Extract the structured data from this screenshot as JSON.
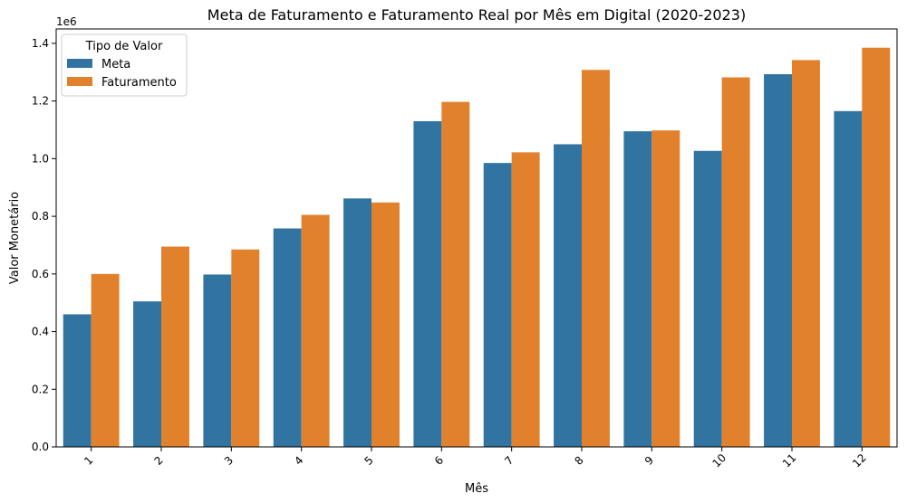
{
  "chart_data": {
    "type": "bar",
    "title": "Meta de Faturamento e Faturamento Real por Mês em Digital (2020-2023)",
    "xlabel": "Mês",
    "ylabel": "Valor Monetário",
    "y_offset_label": "1e6",
    "ylim": [
      0,
      1.45
    ],
    "y_ticks": [
      "0.0",
      "0.2",
      "0.4",
      "0.6",
      "0.8",
      "1.0",
      "1.2",
      "1.4"
    ],
    "categories": [
      "1",
      "2",
      "3",
      "4",
      "5",
      "6",
      "7",
      "8",
      "9",
      "10",
      "11",
      "12"
    ],
    "legend": {
      "title": "Tipo de Valor",
      "position": "top-left"
    },
    "grid": false,
    "series": [
      {
        "name": "Meta",
        "color": "#3274a1",
        "values": [
          0.46,
          0.505,
          0.598,
          0.758,
          0.862,
          1.13,
          0.985,
          1.05,
          1.095,
          1.027,
          1.293,
          1.165
        ]
      },
      {
        "name": "Faturamento",
        "color": "#e1812c",
        "values": [
          0.6,
          0.695,
          0.685,
          0.805,
          0.848,
          1.197,
          1.022,
          1.308,
          1.098,
          1.282,
          1.342,
          1.385
        ]
      }
    ]
  }
}
